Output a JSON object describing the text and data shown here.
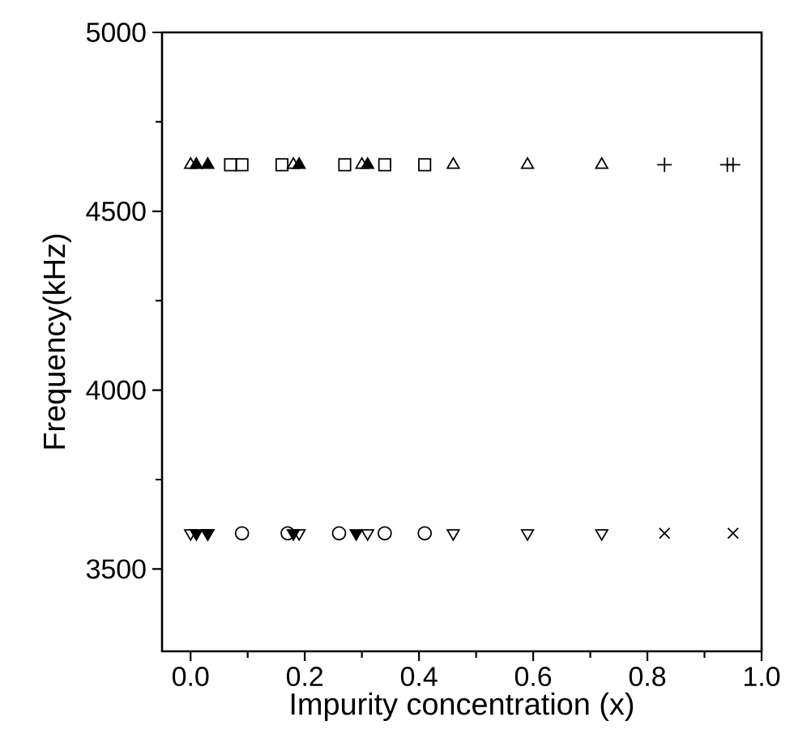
{
  "chart_data": {
    "type": "scatter",
    "xlabel": "Impurity concentration (x)",
    "ylabel": "Frequency(kHz)",
    "xlim": [
      -0.05,
      1.0
    ],
    "ylim": [
      3270,
      5000
    ],
    "xticks": [
      {
        "value": 0,
        "label": "0.0"
      },
      0.2,
      0.4,
      0.6,
      0.8,
      {
        "value": 1,
        "label": "1.0"
      }
    ],
    "yticks": [
      3500,
      4000,
      4500,
      5000
    ],
    "grid": false,
    "series": [
      {
        "marker": "triangle",
        "color": "#000000",
        "x": [
          0.0,
          0.18,
          0.3,
          0.46,
          0.59,
          0.72
        ],
        "values": [
          4630,
          4630,
          4630,
          4630,
          4630,
          4630
        ]
      },
      {
        "marker": "square",
        "color": "#000000",
        "x": [
          0.07,
          0.09,
          0.16,
          0.27,
          0.34,
          0.41
        ],
        "values": [
          4630,
          4630,
          4630,
          4630,
          4630,
          4630
        ]
      },
      {
        "marker": "triangle-filled",
        "color": "#000000",
        "x": [
          0.01,
          0.03,
          0.19,
          0.31
        ],
        "values": [
          4630,
          4630,
          4630,
          4630
        ]
      },
      {
        "marker": "plus",
        "color": "#000000",
        "x": [
          0.83,
          0.94,
          0.95
        ],
        "values": [
          4630,
          4630,
          4630
        ]
      },
      {
        "marker": "circle",
        "color": "#000000",
        "x": [
          0.09,
          0.17,
          0.26,
          0.34,
          0.41
        ],
        "values": [
          3600,
          3600,
          3600,
          3600,
          3600
        ]
      },
      {
        "marker": "triangle-down",
        "color": "#000000",
        "x": [
          0.0,
          0.03,
          0.19,
          0.31,
          0.46,
          0.59,
          0.72
        ],
        "values": [
          3600,
          3600,
          3600,
          3600,
          3600,
          3600,
          3600
        ]
      },
      {
        "marker": "triangle-down-filled",
        "color": "#000000",
        "x": [
          0.01,
          0.03,
          0.18,
          0.29
        ],
        "values": [
          3600,
          3600,
          3600,
          3600
        ]
      },
      {
        "marker": "cross",
        "color": "#000000",
        "x": [
          0.83,
          0.95
        ],
        "values": [
          3600,
          3600
        ]
      }
    ]
  }
}
